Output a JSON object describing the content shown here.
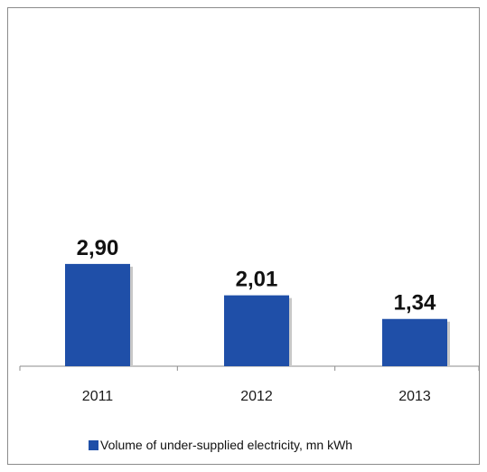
{
  "chart_data": {
    "type": "bar",
    "categories": [
      "2011",
      "2012",
      "2013"
    ],
    "series": [
      {
        "name": "Volume of under-supplied  electricity,  mn kWh",
        "values": [
          2.9,
          2.01,
          1.34
        ],
        "color": "#1f4fa8"
      }
    ],
    "data_labels": [
      "2,90",
      "2,01",
      "1,34"
    ],
    "ylim": [
      0,
      10
    ],
    "grid": false,
    "legend_position": "bottom",
    "title": "",
    "xlabel": "",
    "ylabel": ""
  }
}
